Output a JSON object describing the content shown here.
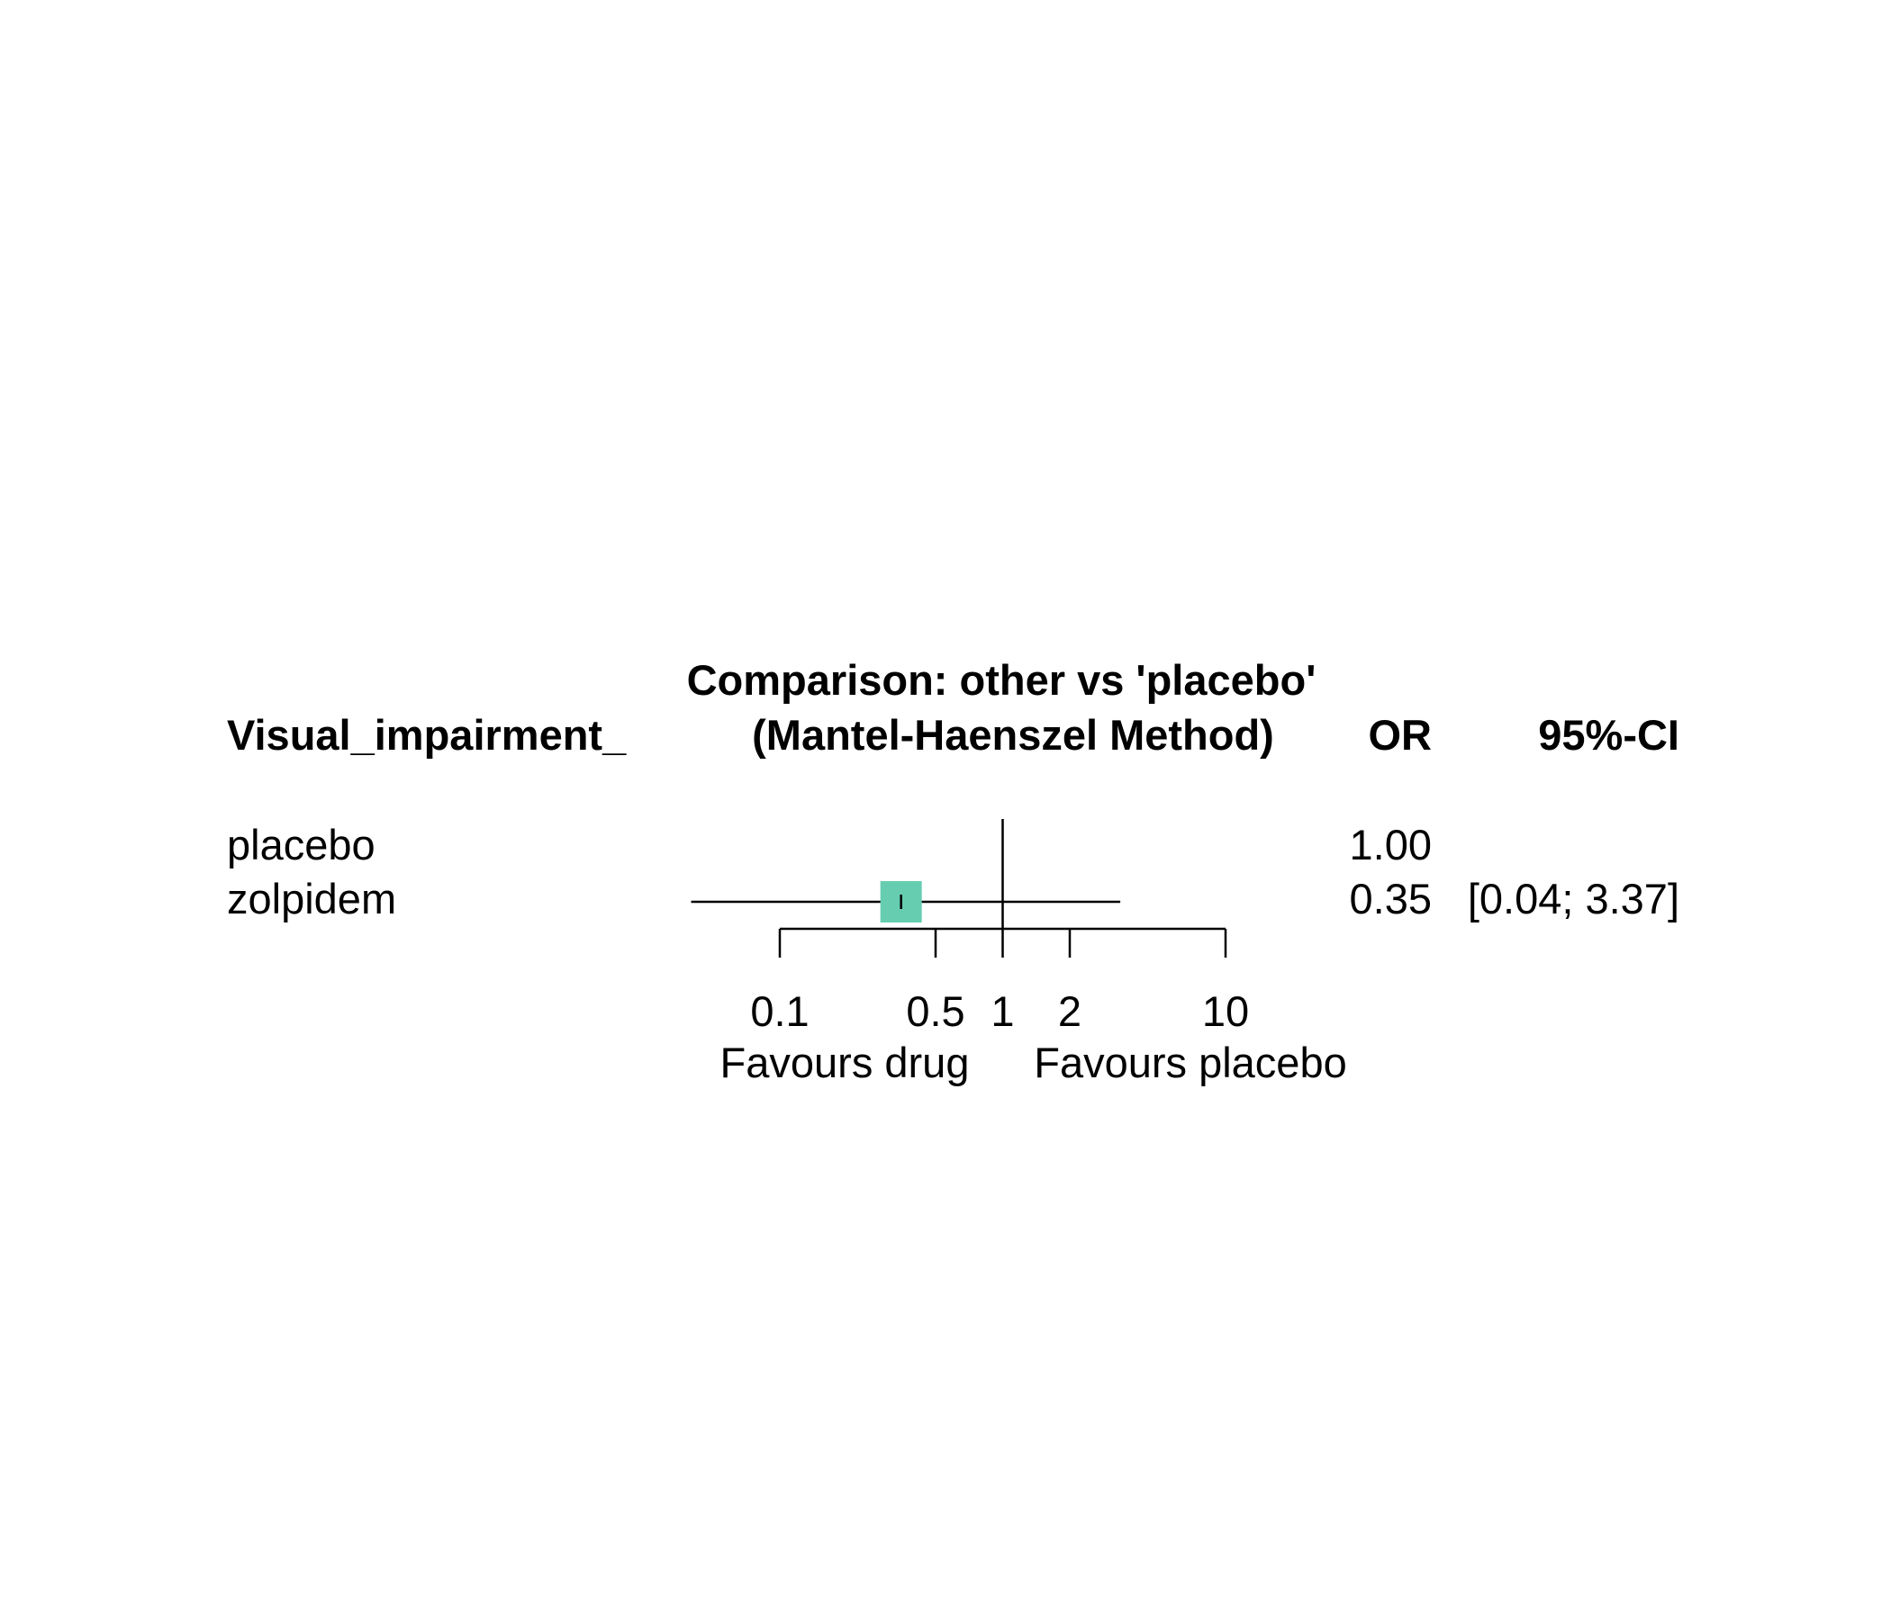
{
  "chart_data": {
    "type": "forest",
    "header": {
      "column_label": "Visual_impairment_",
      "comparison_title": "Comparison: other vs 'placebo'",
      "method": "(Mantel-Haenszel Method)",
      "effect_label": "OR",
      "ci_label": "95%-CI"
    },
    "rows": [
      {
        "label": "placebo",
        "or": 1.0,
        "or_text": "1.00",
        "ci_text": "",
        "lower": null,
        "upper": null
      },
      {
        "label": "zolpidem",
        "or": 0.35,
        "or_text": "0.35",
        "ci_text": "[0.04; 3.37]",
        "lower": 0.04,
        "upper": 3.37
      }
    ],
    "x_axis": {
      "scale": "log",
      "ticks": [
        0.1,
        0.5,
        1,
        2,
        10
      ],
      "tick_labels": [
        "0.1",
        "0.5",
        "1",
        "2",
        "10"
      ],
      "range": [
        0.1,
        10
      ],
      "reference": 1
    },
    "favours_left": "Favours drug",
    "favours_right": "Favours placebo",
    "colors": {
      "square": "#66cdb1",
      "lines": "#000000"
    }
  }
}
